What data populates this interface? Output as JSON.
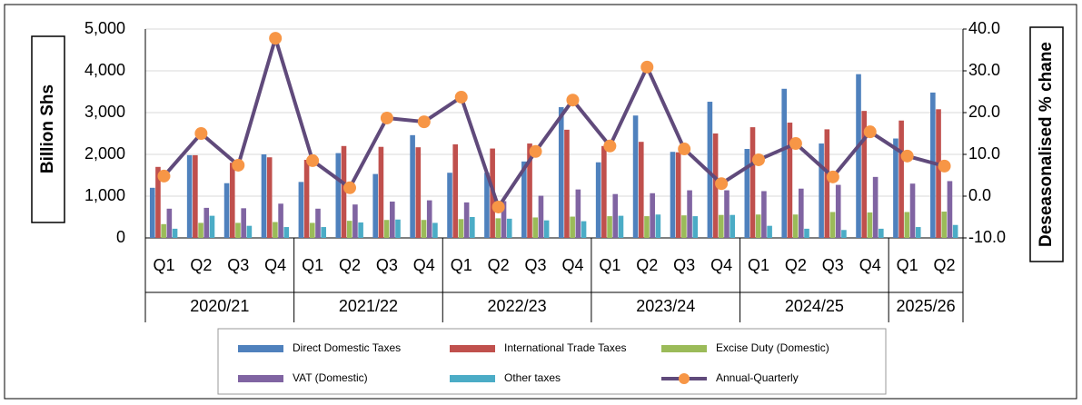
{
  "chart_data": {
    "type": "bar",
    "y_label": "Billion Shs",
    "y2_label": "Deseasonalised % chane",
    "groups": [
      {
        "name": "2020/21",
        "categories": [
          "Q1",
          "Q2",
          "Q3",
          "Q4"
        ]
      },
      {
        "name": "2021/22",
        "categories": [
          "Q1",
          "Q2",
          "Q3",
          "Q4"
        ]
      },
      {
        "name": "2022/23",
        "categories": [
          "Q1",
          "Q2",
          "Q3",
          "Q4"
        ]
      },
      {
        "name": "2023/24",
        "categories": [
          "Q1",
          "Q2",
          "Q3",
          "Q4"
        ]
      },
      {
        "name": "2024/25",
        "categories": [
          "Q1",
          "Q2",
          "Q3",
          "Q4"
        ]
      },
      {
        "name": "2025/26",
        "categories": [
          "Q1",
          "Q2"
        ]
      }
    ],
    "series": [
      {
        "name": "Direct Domestic Taxes",
        "type": "bar",
        "color": "#4f81bd",
        "values": [
          1200,
          1980,
          1310,
          2000,
          1340,
          2030,
          1530,
          2460,
          1560,
          1560,
          1830,
          3130,
          1810,
          2930,
          2060,
          3260,
          2130,
          3570,
          2260,
          3920,
          2380,
          3480
        ]
      },
      {
        "name": "International Trade Taxes",
        "type": "bar",
        "color": "#c0504d",
        "values": [
          1700,
          1980,
          1800,
          1930,
          1870,
          2200,
          2180,
          2170,
          2240,
          2140,
          2260,
          2590,
          2200,
          2300,
          2050,
          2500,
          2650,
          2760,
          2600,
          3040,
          2810,
          3080
        ]
      },
      {
        "name": "Excise Duty (Domestic)",
        "type": "bar",
        "color": "#9bbb59",
        "values": [
          330,
          360,
          360,
          380,
          360,
          410,
          430,
          430,
          450,
          470,
          490,
          510,
          520,
          520,
          540,
          550,
          560,
          560,
          620,
          610,
          620,
          630
        ]
      },
      {
        "name": "VAT (Domestic)",
        "type": "bar",
        "color": "#8064a2",
        "values": [
          700,
          720,
          710,
          820,
          700,
          800,
          870,
          900,
          850,
          880,
          1010,
          1160,
          1050,
          1070,
          1140,
          1140,
          1120,
          1180,
          1270,
          1460,
          1300,
          1360
        ]
      },
      {
        "name": "Other taxes",
        "type": "bar",
        "color": "#4bacc6",
        "values": [
          220,
          530,
          290,
          260,
          260,
          370,
          440,
          360,
          500,
          460,
          420,
          400,
          530,
          560,
          520,
          550,
          290,
          220,
          190,
          220,
          260,
          310
        ]
      },
      {
        "name": "Annual-Quarterly",
        "type": "line",
        "axis": "y2",
        "color": "#604a7b",
        "marker_color": "#f79646",
        "values": [
          4.8,
          15.0,
          7.4,
          37.8,
          8.5,
          2.0,
          18.7,
          17.8,
          23.7,
          -2.6,
          10.7,
          23.0,
          12.0,
          30.9,
          11.3,
          3.0,
          8.7,
          12.6,
          4.6,
          15.4,
          9.6,
          7.2
        ]
      }
    ],
    "ylim": [
      0,
      5000
    ],
    "yticks": [
      0,
      {
        "value": 1000,
        "label": "1,000"
      },
      {
        "value": 2000,
        "label": "2,000"
      },
      {
        "value": 3000,
        "label": "3,000"
      },
      {
        "value": 4000,
        "label": "4,000"
      },
      {
        "value": 5000,
        "label": "5,000"
      }
    ],
    "y2lim": [
      -10,
      40
    ],
    "y2ticks": [
      {
        "value": -10,
        "label": "-10.0"
      },
      {
        "value": 0,
        "label": "0.0"
      },
      {
        "value": 10,
        "label": "10.0"
      },
      {
        "value": 20,
        "label": "20.0"
      },
      {
        "value": 30,
        "label": "30.0"
      },
      {
        "value": 40,
        "label": "40.0"
      }
    ],
    "grid": true,
    "legend": "bottom"
  }
}
